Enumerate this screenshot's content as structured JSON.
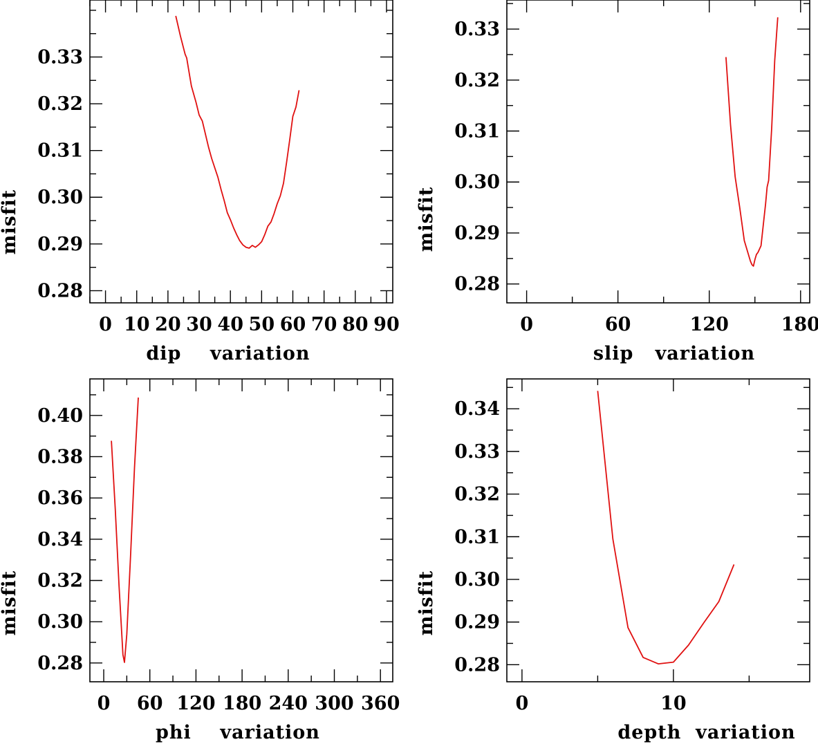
{
  "chart_data": [
    {
      "type": "line",
      "xlabel": "dip    variation",
      "ylabel": "misfit",
      "xlim": [
        -5,
        92
      ],
      "ylim": [
        0.2774,
        0.3422
      ],
      "xticks": [
        0,
        10,
        20,
        30,
        40,
        50,
        60,
        70,
        80,
        90
      ],
      "xtick_labels": [
        "0",
        "10",
        "20",
        "30",
        "40",
        "50",
        "60",
        "70",
        "80",
        "90"
      ],
      "yticks": [
        0.28,
        0.29,
        0.3,
        0.31,
        0.32,
        0.33
      ],
      "ytick_labels": [
        "0.28",
        "0.29",
        "0.30",
        "0.31",
        "0.32",
        "0.33"
      ],
      "line_color": "#e01010",
      "series": [
        {
          "name": "misfit",
          "x": [
            22.5,
            24,
            25.5,
            26,
            27,
            27.5,
            29,
            30,
            31,
            32,
            33,
            34,
            35,
            36,
            37,
            38,
            39,
            40,
            41,
            42,
            43,
            44,
            45,
            46,
            47,
            48,
            49,
            50,
            51,
            52,
            53,
            54,
            55,
            56,
            57,
            58,
            59,
            60,
            61,
            62
          ],
          "y": [
            0.3388,
            0.3345,
            0.3306,
            0.3298,
            0.3258,
            0.3238,
            0.3203,
            0.3176,
            0.3163,
            0.3135,
            0.3107,
            0.3083,
            0.3063,
            0.3043,
            0.3017,
            0.2993,
            0.2967,
            0.2952,
            0.2935,
            0.292,
            0.2907,
            0.2898,
            0.2893,
            0.2891,
            0.2897,
            0.2893,
            0.2898,
            0.2905,
            0.292,
            0.2938,
            0.2947,
            0.2965,
            0.2986,
            0.3003,
            0.303,
            0.3075,
            0.3123,
            0.3173,
            0.3193,
            0.3229
          ]
        }
      ]
    },
    {
      "type": "line",
      "xlabel": "slip   variation",
      "ylabel": "misfit",
      "xlim": [
        -13,
        186
      ],
      "ylim": [
        0.2763,
        0.3357
      ],
      "xticks": [
        0,
        60,
        120,
        180
      ],
      "xtick_labels": [
        "0",
        "60",
        "120",
        "180"
      ],
      "yticks": [
        0.28,
        0.29,
        0.3,
        0.31,
        0.32,
        0.33
      ],
      "ytick_labels": [
        "0.28",
        "0.29",
        "0.30",
        "0.31",
        "0.32",
        "0.33"
      ],
      "line_color": "#e01010",
      "series": [
        {
          "name": "misfit",
          "x": [
            131,
            134,
            137,
            140,
            143,
            145,
            147,
            148,
            149,
            150,
            151,
            152,
            154,
            156,
            157,
            158,
            159,
            161,
            163,
            165
          ],
          "y": [
            0.3245,
            0.3112,
            0.301,
            0.295,
            0.2885,
            0.2865,
            0.2845,
            0.2838,
            0.2835,
            0.2848,
            0.2858,
            0.2862,
            0.2875,
            0.293,
            0.2957,
            0.299,
            0.3003,
            0.3105,
            0.3238,
            0.3323
          ]
        }
      ]
    },
    {
      "type": "line",
      "xlabel": "phi    variation",
      "ylabel": "misfit",
      "xlim": [
        -18,
        376
      ],
      "ylim": [
        0.2709,
        0.4177
      ],
      "xticks": [
        0,
        60,
        120,
        180,
        240,
        300,
        360
      ],
      "xtick_labels": [
        "0",
        "60",
        "120",
        "180",
        "240",
        "300",
        "360"
      ],
      "yticks": [
        0.28,
        0.3,
        0.32,
        0.34,
        0.36,
        0.38,
        0.4
      ],
      "ytick_labels": [
        "0.28",
        "0.30",
        "0.32",
        "0.34",
        "0.36",
        "0.38",
        "0.40"
      ],
      "line_color": "#e01010",
      "series": [
        {
          "name": "misfit",
          "x": [
            10,
            15,
            20,
            25,
            27,
            30,
            35,
            40,
            45
          ],
          "y": [
            0.3877,
            0.3546,
            0.3172,
            0.284,
            0.2803,
            0.294,
            0.3325,
            0.3746,
            0.4087
          ]
        }
      ]
    },
    {
      "type": "line",
      "xlabel": "depth  variation",
      "ylabel": "misfit",
      "xlim": [
        -1,
        19
      ],
      "ylim": [
        0.276,
        0.347
      ],
      "xticks": [
        0,
        10
      ],
      "xtick_labels": [
        "0",
        "10"
      ],
      "yticks": [
        0.28,
        0.29,
        0.3,
        0.31,
        0.32,
        0.33,
        0.34
      ],
      "ytick_labels": [
        "0.28",
        "0.29",
        "0.30",
        "0.31",
        "0.32",
        "0.33",
        "0.34"
      ],
      "line_color": "#e01010",
      "series": [
        {
          "name": "misfit",
          "x": [
            5,
            6,
            7,
            8,
            9,
            10,
            11,
            12,
            13,
            14
          ],
          "y": [
            0.3442,
            0.3095,
            0.2887,
            0.2817,
            0.2802,
            0.2806,
            0.2846,
            0.2898,
            0.2948,
            0.3035
          ]
        }
      ]
    }
  ]
}
